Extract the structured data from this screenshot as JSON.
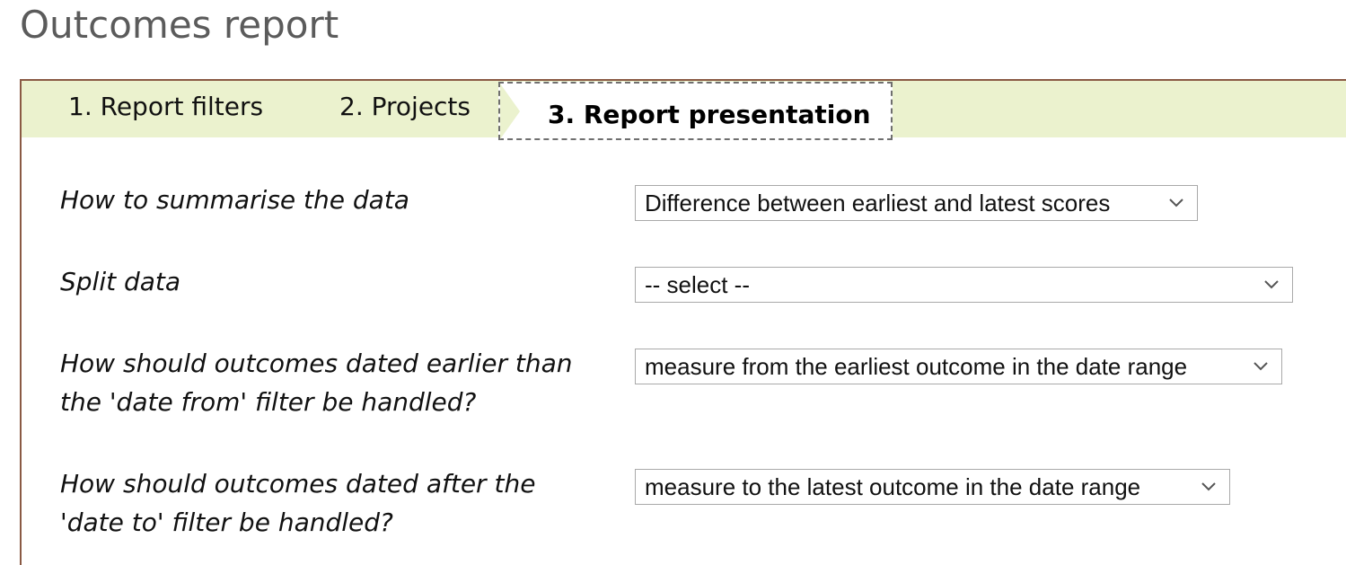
{
  "page": {
    "title": "Outcomes report"
  },
  "tabs": [
    {
      "label": "1. Report filters",
      "active": false
    },
    {
      "label": "2. Projects",
      "active": false
    },
    {
      "label": "3. Report presentation",
      "active": true
    }
  ],
  "colors": {
    "tab_strip": "#ebf2ce",
    "panel_border": "#8a5a44",
    "title_text": "#5b5b5b"
  },
  "form": {
    "fields": [
      {
        "label": "How to summarise the data",
        "selected": "Difference between earliest and latest scores"
      },
      {
        "label": "Split data",
        "selected": "-- select --"
      },
      {
        "label": "How should outcomes dated earlier than the 'date from' filter be handled?",
        "selected": "measure from the earliest outcome in the date range"
      },
      {
        "label": "How should outcomes dated after the 'date to' filter be handled?",
        "selected": "measure to the latest outcome in the date range"
      }
    ]
  }
}
